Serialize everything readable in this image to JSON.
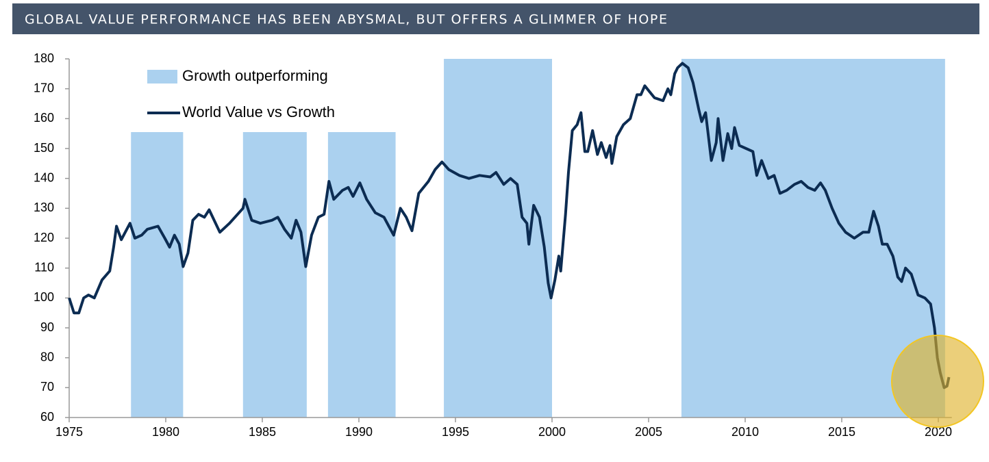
{
  "chart_data": {
    "type": "line",
    "title": "GLOBAL VALUE PERFORMANCE HAS BEEN ABYSMAL, BUT OFFERS A GLIMMER OF HOPE",
    "xlim": [
      1975,
      2020.7
    ],
    "xticks": [
      1975,
      1980,
      1985,
      1990,
      1995,
      2000,
      2005,
      2010,
      2015,
      2020
    ],
    "ylim": [
      60,
      180
    ],
    "yticks": [
      60,
      70,
      80,
      90,
      100,
      110,
      120,
      130,
      140,
      150,
      160,
      170,
      180
    ],
    "legend": "top-left",
    "series": [
      {
        "name": "Growth outperforming",
        "color": "#abd1ef",
        "kind": "band",
        "starts": [
          1978.2,
          1984.0,
          1988.4,
          1994.4,
          2006.7
        ],
        "ends": [
          1980.9,
          1987.3,
          1991.9,
          2000.0,
          2020.35
        ],
        "values": [
          155.5,
          155.5,
          155.5,
          180,
          180
        ]
      },
      {
        "name": "World Value vs Growth",
        "color": "#0c2c52",
        "kind": "line",
        "x": [
          1975.0,
          1975.25,
          1975.5,
          1975.75,
          1976.0,
          1976.3,
          1976.7,
          1977.1,
          1977.3,
          1977.45,
          1977.7,
          1978.15,
          1978.4,
          1978.75,
          1979.05,
          1979.6,
          1979.95,
          1980.2,
          1980.45,
          1980.7,
          1980.9,
          1981.15,
          1981.4,
          1981.7,
          1982.0,
          1982.25,
          1982.8,
          1983.3,
          1983.65,
          1984.0,
          1984.1,
          1984.45,
          1984.9,
          1985.5,
          1985.8,
          1986.15,
          1986.5,
          1986.75,
          1987.0,
          1987.25,
          1987.55,
          1987.9,
          1988.2,
          1988.45,
          1988.7,
          1989.15,
          1989.45,
          1989.7,
          1990.05,
          1990.4,
          1990.85,
          1991.3,
          1991.55,
          1991.8,
          1992.15,
          1992.45,
          1992.75,
          1993.1,
          1993.6,
          1993.95,
          1994.3,
          1994.65,
          1995.2,
          1995.7,
          1996.25,
          1996.8,
          1997.1,
          1997.5,
          1997.85,
          1998.2,
          1998.45,
          1998.7,
          1998.8,
          1999.05,
          1999.35,
          1999.6,
          1999.8,
          1999.95,
          2000.15,
          2000.35,
          2000.45,
          2000.7,
          2000.85,
          2001.05,
          2001.3,
          2001.5,
          2001.7,
          2001.85,
          2002.1,
          2002.35,
          2002.55,
          2002.8,
          2003.0,
          2003.1,
          2003.35,
          2003.7,
          2004.05,
          2004.4,
          2004.6,
          2004.8,
          2005.05,
          2005.3,
          2005.75,
          2006.0,
          2006.15,
          2006.35,
          2006.5,
          2006.75,
          2007.05,
          2007.3,
          2007.6,
          2007.75,
          2007.95,
          2008.25,
          2008.5,
          2008.6,
          2008.85,
          2009.1,
          2009.3,
          2009.45,
          2009.7,
          2010.05,
          2010.4,
          2010.6,
          2010.85,
          2011.2,
          2011.5,
          2011.8,
          2012.15,
          2012.55,
          2012.9,
          2013.25,
          2013.6,
          2013.9,
          2014.15,
          2014.5,
          2014.85,
          2015.2,
          2015.65,
          2016.1,
          2016.4,
          2016.65,
          2016.9,
          2017.1,
          2017.35,
          2017.65,
          2017.9,
          2018.1,
          2018.3,
          2018.6,
          2018.95,
          2019.3,
          2019.6,
          2019.8,
          2019.95,
          2020.1,
          2020.3,
          2020.45,
          2020.55
        ],
        "values": [
          100,
          95,
          95,
          100,
          101,
          100,
          106,
          109,
          117,
          124,
          119.5,
          125,
          120,
          121,
          123,
          124,
          120,
          117,
          121,
          118,
          110.5,
          115,
          126,
          128,
          127,
          129.5,
          122,
          125,
          127.5,
          130,
          133,
          126,
          125,
          126,
          127,
          123,
          120,
          126,
          122,
          110.5,
          121,
          127,
          128,
          139,
          133,
          136,
          137,
          134,
          138.5,
          133,
          128.5,
          127,
          124,
          121,
          130,
          127,
          122.5,
          135,
          139,
          143,
          145.5,
          143,
          141,
          140,
          141,
          140.5,
          142,
          138,
          140,
          138,
          127,
          125,
          118,
          131,
          127,
          117,
          105,
          100,
          106,
          114,
          109,
          128,
          142,
          156,
          158,
          162,
          149,
          149,
          156,
          148,
          152,
          147,
          151,
          145,
          154,
          158,
          160,
          168,
          168,
          171,
          169,
          167,
          166,
          170,
          168,
          175,
          177,
          178.5,
          177,
          172,
          163,
          159,
          162,
          146,
          152,
          160,
          146,
          155,
          150,
          157,
          151,
          150,
          149,
          141,
          146,
          140,
          141,
          135,
          136,
          138,
          139,
          137,
          136,
          138.5,
          136,
          130,
          125,
          122,
          120,
          122,
          122,
          129,
          124,
          118,
          118,
          114,
          107,
          105.5,
          110,
          108,
          101,
          100,
          98,
          90,
          80,
          75,
          70,
          70.5,
          73.5
        ]
      }
    ]
  }
}
